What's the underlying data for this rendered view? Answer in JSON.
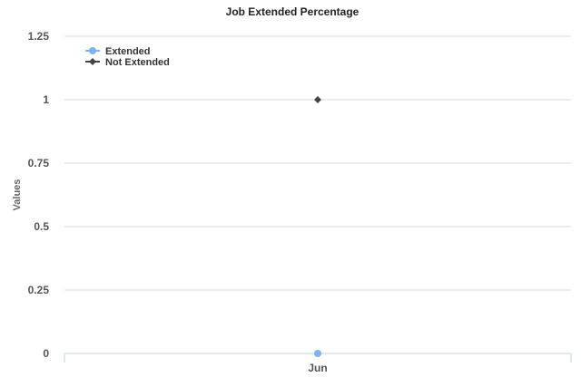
{
  "chart_data": {
    "type": "line",
    "title": "Job Extended Percentage",
    "xlabel": "",
    "ylabel": "Values",
    "categories": [
      "Jun"
    ],
    "ylim": [
      0,
      1.25
    ],
    "yticks": [
      "0",
      "0.25",
      "0.5",
      "0.75",
      "1",
      "1.25"
    ],
    "grid": true,
    "legend_position": "top-left",
    "series": [
      {
        "name": "Extended",
        "values": [
          0
        ],
        "color": "#7cb5ec",
        "marker": "circle"
      },
      {
        "name": "Not Extended",
        "values": [
          1
        ],
        "color": "#434348",
        "marker": "diamond"
      }
    ]
  }
}
